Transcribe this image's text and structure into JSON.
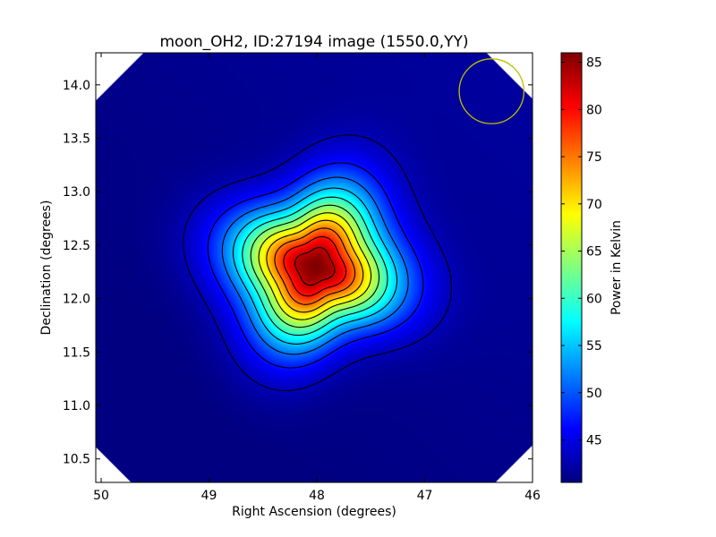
{
  "chart_data": {
    "type": "heatmap",
    "title": "moon_OH2, ID:27194 image (1550.0,YY)",
    "xlabel": "Right Ascension (degrees)",
    "ylabel": "Declination (degrees)",
    "xlim": [
      50.05,
      46.0
    ],
    "ylim": [
      10.28,
      14.3
    ],
    "x_ticks": [
      50,
      49,
      48,
      47,
      46
    ],
    "x_tick_labels": [
      "50",
      "49",
      "48",
      "47",
      "46"
    ],
    "y_ticks": [
      10.5,
      11.0,
      11.5,
      12.0,
      12.5,
      13.0,
      13.5,
      14.0
    ],
    "y_tick_labels": [
      "10.5",
      "11.0",
      "11.5",
      "12.0",
      "12.5",
      "13.0",
      "13.5",
      "14.0"
    ],
    "grid": false,
    "colormap": "jet",
    "colorbar": {
      "label": "Power in Kelvin",
      "range": [
        40.5,
        86.0
      ],
      "ticks": [
        45,
        50,
        55,
        60,
        65,
        70,
        75,
        80,
        85
      ],
      "tick_labels": [
        "45",
        "50",
        "55",
        "60",
        "65",
        "70",
        "75",
        "80",
        "85"
      ]
    },
    "source": {
      "ra": 48.02,
      "dec": 12.3,
      "peak": 86.0,
      "background": 41.0
    },
    "contour_levels": [
      43,
      47,
      51,
      55,
      59,
      63,
      67,
      71,
      75,
      79,
      83
    ],
    "beam_circle": {
      "ra": 46.38,
      "dec": 13.94,
      "radius_deg": 0.3,
      "color": "#bfbf00"
    },
    "image_boundary": "octagon"
  }
}
